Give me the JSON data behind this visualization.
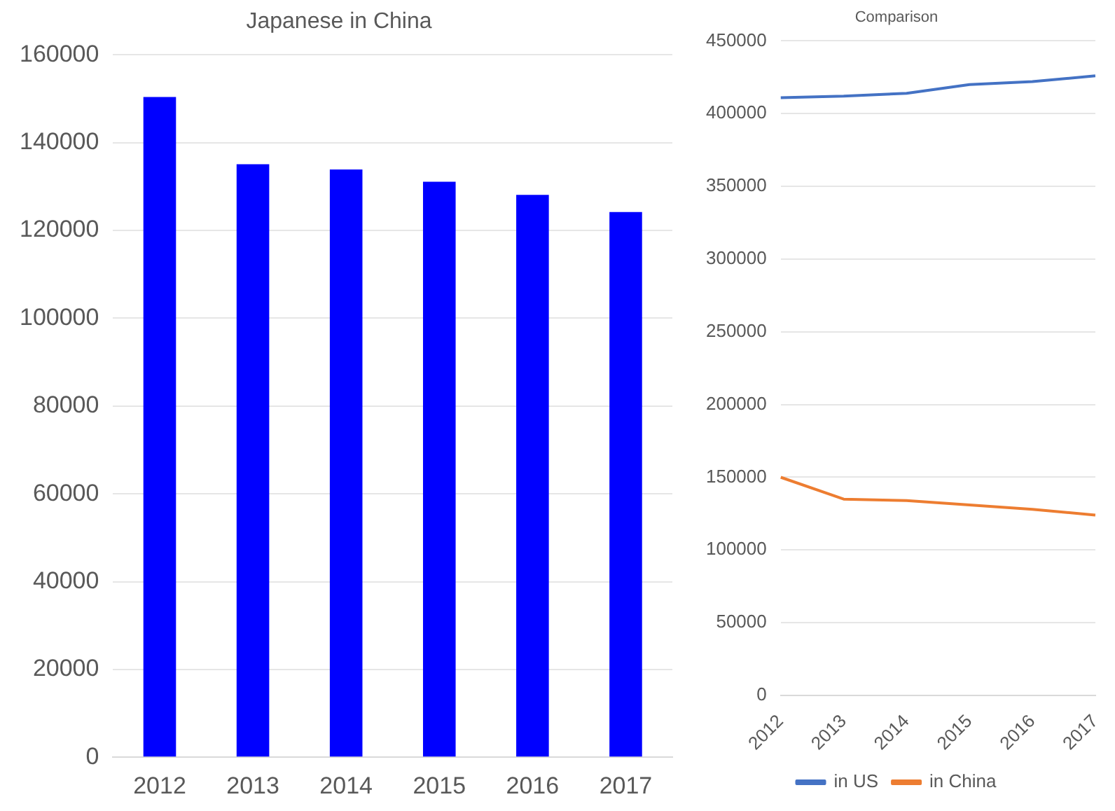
{
  "chart_data": [
    {
      "type": "bar",
      "title": "Japanese in China",
      "categories": [
        "2012",
        "2013",
        "2014",
        "2015",
        "2016",
        "2017"
      ],
      "values": [
        150400,
        135100,
        133900,
        131100,
        128100,
        124200
      ],
      "color": "#0000ff",
      "ylim": [
        0,
        160000
      ],
      "yticks": [
        0,
        20000,
        40000,
        60000,
        80000,
        100000,
        120000,
        140000,
        160000
      ],
      "grid": "y",
      "legend": false
    },
    {
      "type": "line",
      "title": "Comparison",
      "categories": [
        "2012",
        "2013",
        "2014",
        "2015",
        "2016",
        "2017"
      ],
      "series": [
        {
          "name": "in US",
          "color": "#4472c4",
          "values": [
            411000,
            412000,
            414000,
            420000,
            422000,
            426000
          ]
        },
        {
          "name": "in China",
          "color": "#ed7d31",
          "values": [
            150000,
            135000,
            134000,
            131000,
            128000,
            124000
          ]
        }
      ],
      "ylim": [
        0,
        450000
      ],
      "yticks": [
        0,
        50000,
        100000,
        150000,
        200000,
        250000,
        300000,
        350000,
        400000,
        450000
      ],
      "grid": "y",
      "legend": "bottom",
      "marker": "none"
    }
  ]
}
